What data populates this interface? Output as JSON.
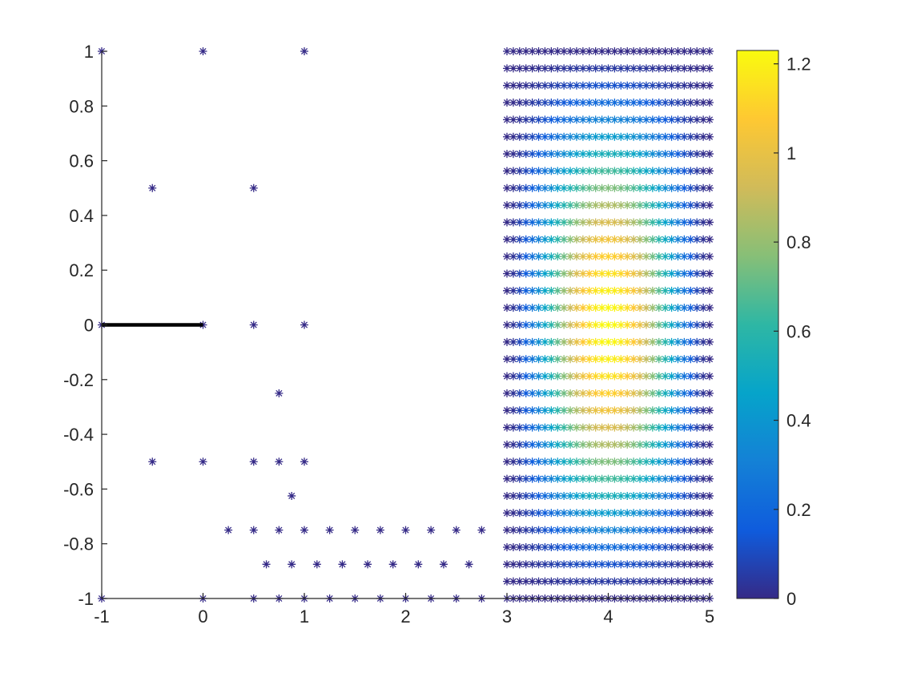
{
  "chart_data": {
    "type": "scatter",
    "title": "",
    "xlabel": "",
    "ylabel": "",
    "xlim": [
      -1,
      5
    ],
    "ylim": [
      -1,
      1
    ],
    "grid": false,
    "x_ticks": [
      "-1",
      "0",
      "1",
      "2",
      "3",
      "4",
      "5"
    ],
    "y_ticks": [
      "1",
      "0.8",
      "0.6",
      "0.4",
      "0.2",
      "0",
      "-0.2",
      "-0.4",
      "-0.6",
      "-0.8",
      "-1"
    ],
    "marker": "asterisk",
    "colormap": "parula",
    "colorbar": {
      "range": [
        0,
        1.23
      ],
      "ticks": [
        "0",
        "0.2",
        "0.4",
        "0.6",
        "0.8",
        "1",
        "1.2"
      ],
      "position": "right"
    },
    "line_segment": {
      "x": [
        -1,
        0
      ],
      "y": [
        0,
        0
      ],
      "color": "#000000"
    },
    "sparse_points": [
      {
        "x": -1,
        "y": 1,
        "v": 0
      },
      {
        "x": 0,
        "y": 1,
        "v": 0
      },
      {
        "x": 1,
        "y": 1,
        "v": 0
      },
      {
        "x": -0.5,
        "y": 0.5,
        "v": 0
      },
      {
        "x": 0.5,
        "y": 0.5,
        "v": 0
      },
      {
        "x": -1,
        "y": 0,
        "v": 0
      },
      {
        "x": 0,
        "y": 0,
        "v": 0
      },
      {
        "x": 0.5,
        "y": 0,
        "v": 0
      },
      {
        "x": 1,
        "y": 0,
        "v": 0
      },
      {
        "x": 0.75,
        "y": -0.25,
        "v": 0
      },
      {
        "x": -0.5,
        "y": -0.5,
        "v": 0
      },
      {
        "x": 0,
        "y": -0.5,
        "v": 0
      },
      {
        "x": 0.5,
        "y": -0.5,
        "v": 0
      },
      {
        "x": 0.75,
        "y": -0.5,
        "v": 0
      },
      {
        "x": 1,
        "y": -0.5,
        "v": 0
      },
      {
        "x": 0.875,
        "y": -0.625,
        "v": 0
      },
      {
        "x": -1,
        "y": -1,
        "v": 0
      },
      {
        "x": 0,
        "y": -1,
        "v": 0
      }
    ],
    "bottom_rows": [
      {
        "y": -0.75,
        "x_start": 0.25,
        "x_end": 2.75,
        "step": 0.25
      },
      {
        "y": -0.875,
        "x_start": 0.625,
        "x_end": 2.625,
        "step": 0.25
      },
      {
        "y": -1,
        "x_start": 0.5,
        "x_end": 2.75,
        "step": 0.25
      }
    ],
    "dense_region": {
      "x_range": [
        3,
        5
      ],
      "y_range": [
        -1,
        1
      ],
      "peak_center": [
        4,
        0
      ],
      "peak_value": 1.23,
      "boundary_value": 0,
      "x_step": 0.0625,
      "y_step": 0.0625
    }
  }
}
